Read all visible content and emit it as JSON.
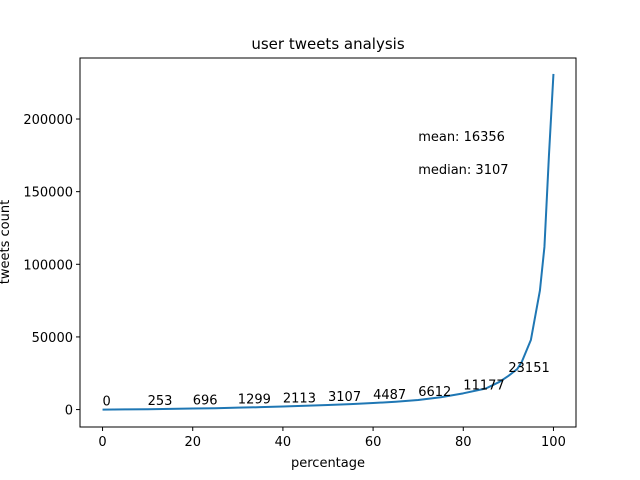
{
  "chart_data": {
    "type": "line",
    "title": "user tweets analysis",
    "xlabel": "percentage",
    "ylabel": "tweets count",
    "xlim": [
      -5,
      105
    ],
    "ylim": [
      -12000,
      242000
    ],
    "xticks": [
      0,
      20,
      40,
      60,
      80,
      100
    ],
    "yticks": [
      0,
      50000,
      100000,
      150000,
      200000
    ],
    "grid": false,
    "legend": "none",
    "series": [
      {
        "color": "#1f77b4",
        "x": [
          0,
          5,
          10,
          15,
          20,
          25,
          30,
          35,
          40,
          45,
          50,
          55,
          60,
          65,
          70,
          75,
          80,
          85,
          88,
          90,
          92,
          93,
          95,
          97,
          98,
          99,
          100
        ],
        "y": [
          0,
          100,
          253,
          450,
          696,
          950,
          1299,
          1650,
          2113,
          2600,
          3107,
          3750,
          4487,
          5400,
          6612,
          8500,
          11177,
          14500,
          19000,
          23151,
          28000,
          33000,
          48000,
          82000,
          112000,
          175000,
          231000
        ]
      }
    ],
    "annotations": [
      {
        "text": "0",
        "x": 0,
        "y": 0
      },
      {
        "text": "253",
        "x": 10,
        "y": 253
      },
      {
        "text": "696",
        "x": 20,
        "y": 696
      },
      {
        "text": "1299",
        "x": 30,
        "y": 1299
      },
      {
        "text": "2113",
        "x": 40,
        "y": 2113
      },
      {
        "text": "3107",
        "x": 50,
        "y": 3107
      },
      {
        "text": "4487",
        "x": 60,
        "y": 4487
      },
      {
        "text": "6612",
        "x": 70,
        "y": 6612
      },
      {
        "text": "11177",
        "x": 80,
        "y": 11177
      },
      {
        "text": "23151",
        "x": 90,
        "y": 23151
      }
    ],
    "stats": [
      {
        "text": "mean: 16356",
        "x": 70,
        "y": 185000
      },
      {
        "text": "median: 3107",
        "x": 70,
        "y": 162000
      }
    ]
  }
}
